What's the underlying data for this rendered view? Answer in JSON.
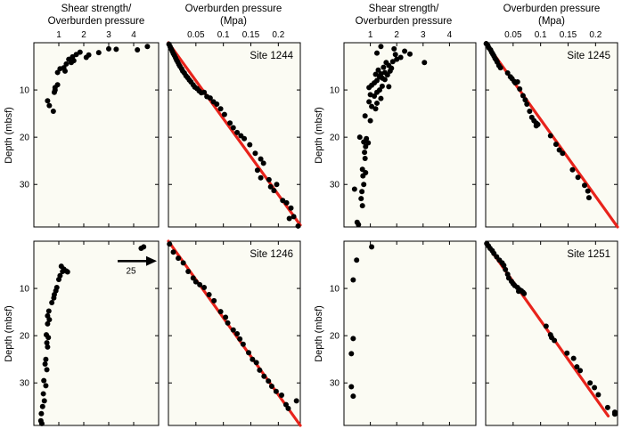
{
  "headers": {
    "shear_line1": "Shear strength/",
    "shear_line2": "Overburden pressure",
    "ob_line1": "Overburden pressure",
    "ob_line2": "(Mpa)"
  },
  "y_axis_label": "Depth (mbsf)",
  "arrow_label": "25",
  "colors": {
    "panel_bg": "#fbfbf3",
    "points": "#000000",
    "trend": "#e8231b"
  },
  "chart_data": [
    {
      "type": "scatter",
      "site": "",
      "kind": "shear",
      "xlabel": "Shear strength/ Overburden pressure",
      "ylabel": "Depth (mbsf)",
      "xlim": [
        0,
        5
      ],
      "ylim": [
        0,
        39
      ],
      "y_reversed": true,
      "x_ticks": [
        1,
        2,
        3,
        4
      ],
      "y_ticks": [
        10,
        20,
        30
      ],
      "points": [
        [
          4.55,
          0.8
        ],
        [
          4.15,
          1.5
        ],
        [
          3.3,
          1.4
        ],
        [
          3.0,
          1.3
        ],
        [
          2.6,
          2.1
        ],
        [
          2.2,
          2.6
        ],
        [
          2.1,
          3.1
        ],
        [
          1.85,
          2.0
        ],
        [
          1.7,
          2.5
        ],
        [
          1.55,
          3.0
        ],
        [
          1.6,
          3.8
        ],
        [
          1.5,
          4.2
        ],
        [
          1.4,
          3.5
        ],
        [
          1.3,
          4.5
        ],
        [
          1.2,
          5.3
        ],
        [
          1.05,
          5.5
        ],
        [
          1.25,
          6.0
        ],
        [
          0.95,
          6.3
        ],
        [
          0.95,
          8.9
        ],
        [
          0.85,
          9.5
        ],
        [
          0.85,
          10.0
        ],
        [
          0.82,
          10.5
        ],
        [
          0.55,
          12.3
        ],
        [
          0.62,
          13.3
        ],
        [
          0.78,
          14.5
        ]
      ],
      "trend": null
    },
    {
      "type": "scatter",
      "site": "Site 1244",
      "kind": "ob",
      "xlabel": "Overburden pressure (Mpa)",
      "ylabel": "Depth (mbsf)",
      "xlim": [
        0,
        0.24
      ],
      "ylim": [
        0,
        39
      ],
      "y_reversed": true,
      "x_ticks": [
        0.05,
        0.1,
        0.15,
        0.2
      ],
      "x_tick_labels": [
        "0.05",
        "0.1",
        "0.15",
        "0.2"
      ],
      "y_ticks": [
        10,
        20,
        30
      ],
      "points": [
        [
          0.001,
          0.3
        ],
        [
          0.003,
          0.8
        ],
        [
          0.005,
          1.3
        ],
        [
          0.007,
          1.8
        ],
        [
          0.009,
          2.3
        ],
        [
          0.011,
          2.7
        ],
        [
          0.013,
          3.2
        ],
        [
          0.015,
          3.7
        ],
        [
          0.017,
          4.1
        ],
        [
          0.019,
          4.6
        ],
        [
          0.021,
          5.0
        ],
        [
          0.024,
          5.5
        ],
        [
          0.026,
          6.0
        ],
        [
          0.029,
          6.4
        ],
        [
          0.032,
          7.0
        ],
        [
          0.035,
          7.4
        ],
        [
          0.038,
          7.9
        ],
        [
          0.041,
          8.3
        ],
        [
          0.045,
          8.9
        ],
        [
          0.048,
          9.4
        ],
        [
          0.052,
          9.7
        ],
        [
          0.056,
          10.2
        ],
        [
          0.06,
          10.6
        ],
        [
          0.065,
          10.5
        ],
        [
          0.07,
          11.4
        ],
        [
          0.076,
          11.7
        ],
        [
          0.082,
          12.5
        ],
        [
          0.088,
          13.0
        ],
        [
          0.095,
          14.0
        ],
        [
          0.102,
          15.2
        ],
        [
          0.112,
          17.0
        ],
        [
          0.118,
          18.0
        ],
        [
          0.125,
          19.0
        ],
        [
          0.132,
          19.7
        ],
        [
          0.138,
          20.3
        ],
        [
          0.148,
          21.6
        ],
        [
          0.158,
          23.4
        ],
        [
          0.168,
          24.6
        ],
        [
          0.173,
          25.5
        ],
        [
          0.162,
          27.0
        ],
        [
          0.168,
          28.6
        ],
        [
          0.183,
          29.0
        ],
        [
          0.186,
          30.5
        ],
        [
          0.192,
          31.3
        ],
        [
          0.197,
          30.0
        ],
        [
          0.208,
          33.4
        ],
        [
          0.215,
          33.9
        ],
        [
          0.223,
          35.0
        ],
        [
          0.228,
          36.8
        ],
        [
          0.236,
          38.8
        ],
        [
          0.22,
          37.2
        ]
      ],
      "trend": [
        [
          0.0,
          0.0
        ],
        [
          0.24,
          38.6
        ]
      ]
    },
    {
      "type": "scatter",
      "site": "",
      "kind": "shear",
      "xlabel": "Shear strength/ Overburden pressure",
      "ylabel": "Depth (mbsf)",
      "xlim": [
        0,
        5
      ],
      "ylim": [
        0,
        39
      ],
      "y_reversed": true,
      "x_ticks": [
        1,
        2,
        3,
        4
      ],
      "y_ticks": [
        10,
        20,
        30
      ],
      "points": [
        [
          2.15,
          3.1
        ],
        [
          1.95,
          2.5
        ],
        [
          2.0,
          3.5
        ],
        [
          1.85,
          4.0
        ],
        [
          1.6,
          4.2
        ],
        [
          1.7,
          4.8
        ],
        [
          1.5,
          5.2
        ],
        [
          1.8,
          5.4
        ],
        [
          1.3,
          5.8
        ],
        [
          1.75,
          6.0
        ],
        [
          1.55,
          6.3
        ],
        [
          1.4,
          6.6
        ],
        [
          1.2,
          6.7
        ],
        [
          1.65,
          6.8
        ],
        [
          1.35,
          7.2
        ],
        [
          1.45,
          7.5
        ],
        [
          1.55,
          7.8
        ],
        [
          1.25,
          8.0
        ],
        [
          1.15,
          8.5
        ],
        [
          1.05,
          9.0
        ],
        [
          1.45,
          9.2
        ],
        [
          1.7,
          9.3
        ],
        [
          0.95,
          9.5
        ],
        [
          1.35,
          10.0
        ],
        [
          1.25,
          10.5
        ],
        [
          1.0,
          11.0
        ],
        [
          1.15,
          11.3
        ],
        [
          1.4,
          11.8
        ],
        [
          0.95,
          12.5
        ],
        [
          1.25,
          12.8
        ],
        [
          1.05,
          13.5
        ],
        [
          1.2,
          14.0
        ],
        [
          0.8,
          15.5
        ],
        [
          1.0,
          16.5
        ],
        [
          0.6,
          20.0
        ],
        [
          0.85,
          20.3
        ],
        [
          0.75,
          21.0
        ],
        [
          0.92,
          21.2
        ],
        [
          0.82,
          22.0
        ],
        [
          0.78,
          23.2
        ],
        [
          0.8,
          24.5
        ],
        [
          0.7,
          26.8
        ],
        [
          0.82,
          27.5
        ],
        [
          0.72,
          28.2
        ],
        [
          0.75,
          30.0
        ],
        [
          0.68,
          31.5
        ],
        [
          0.65,
          33.0
        ],
        [
          0.7,
          34.5
        ],
        [
          0.4,
          31.0
        ],
        [
          0.5,
          38.0
        ],
        [
          0.55,
          38.5
        ],
        [
          3.05,
          4.2
        ],
        [
          2.5,
          2.4
        ],
        [
          2.3,
          1.8
        ],
        [
          1.9,
          1.3
        ],
        [
          1.4,
          0.8
        ],
        [
          1.25,
          2.2
        ]
      ],
      "trend": null
    },
    {
      "type": "scatter",
      "site": "Site 1245",
      "kind": "ob",
      "xlabel": "Overburden pressure (Mpa)",
      "ylabel": "Depth (mbsf)",
      "xlim": [
        0,
        0.24
      ],
      "ylim": [
        0,
        39
      ],
      "y_reversed": true,
      "x_ticks": [
        0.05,
        0.1,
        0.15,
        0.2
      ],
      "x_tick_labels": [
        "0.05",
        "0.1",
        "0.15",
        "0.2"
      ],
      "y_ticks": [
        10,
        20,
        30
      ],
      "points": [
        [
          0.001,
          0.2
        ],
        [
          0.004,
          0.6
        ],
        [
          0.006,
          1.1
        ],
        [
          0.009,
          1.5
        ],
        [
          0.011,
          2.0
        ],
        [
          0.013,
          2.4
        ],
        [
          0.015,
          2.8
        ],
        [
          0.017,
          3.3
        ],
        [
          0.019,
          3.6
        ],
        [
          0.021,
          4.1
        ],
        [
          0.024,
          4.8
        ],
        [
          0.027,
          5.3
        ],
        [
          0.04,
          6.4
        ],
        [
          0.045,
          7.2
        ],
        [
          0.048,
          7.6
        ],
        [
          0.052,
          8.2
        ],
        [
          0.054,
          8.5
        ],
        [
          0.058,
          8.3
        ],
        [
          0.062,
          9.8
        ],
        [
          0.068,
          11.2
        ],
        [
          0.072,
          12.1
        ],
        [
          0.075,
          13.0
        ],
        [
          0.08,
          14.5
        ],
        [
          0.084,
          15.8
        ],
        [
          0.088,
          16.5
        ],
        [
          0.092,
          17.0
        ],
        [
          0.095,
          17.3
        ],
        [
          0.092,
          17.6
        ],
        [
          0.118,
          19.7
        ],
        [
          0.128,
          21.5
        ],
        [
          0.134,
          22.7
        ],
        [
          0.14,
          23.4
        ],
        [
          0.158,
          26.9
        ],
        [
          0.168,
          28.5
        ],
        [
          0.18,
          30.2
        ],
        [
          0.186,
          31.4
        ],
        [
          0.188,
          32.8
        ]
      ],
      "trend": [
        [
          0.0,
          0.0
        ],
        [
          0.24,
          39.0
        ]
      ]
    },
    {
      "type": "scatter",
      "site": "",
      "kind": "shear",
      "xlabel": "Shear strength/ Overburden pressure",
      "ylabel": "Depth (mbsf)",
      "xlim": [
        0,
        5
      ],
      "ylim": [
        0,
        39
      ],
      "y_reversed": true,
      "x_ticks": [
        1,
        2,
        3,
        4
      ],
      "y_ticks": [
        10,
        20,
        30
      ],
      "points": [
        [
          4.4,
          1.2
        ],
        [
          4.3,
          1.5
        ],
        [
          1.1,
          5.3
        ],
        [
          1.2,
          5.9
        ],
        [
          1.3,
          6.3
        ],
        [
          1.35,
          6.5
        ],
        [
          1.15,
          6.4
        ],
        [
          1.05,
          7.3
        ],
        [
          1.0,
          8.1
        ],
        [
          0.92,
          9.8
        ],
        [
          0.88,
          10.5
        ],
        [
          0.82,
          11.3
        ],
        [
          0.8,
          12.0
        ],
        [
          0.72,
          13.0
        ],
        [
          0.6,
          14.8
        ],
        [
          0.55,
          15.8
        ],
        [
          0.62,
          16.6
        ],
        [
          0.55,
          17.5
        ],
        [
          0.5,
          19.8
        ],
        [
          0.58,
          20.4
        ],
        [
          0.52,
          21.5
        ],
        [
          0.55,
          22.4
        ],
        [
          0.48,
          25.0
        ],
        [
          0.45,
          26.0
        ],
        [
          0.52,
          27.2
        ],
        [
          0.4,
          29.5
        ],
        [
          0.48,
          30.6
        ],
        [
          0.38,
          32.3
        ],
        [
          0.42,
          33.8
        ],
        [
          0.35,
          35.0
        ],
        [
          0.3,
          36.5
        ],
        [
          0.28,
          38.0
        ],
        [
          0.32,
          38.6
        ]
      ],
      "trend": null,
      "annotation": {
        "arrow_depth": 4.2,
        "label": "25"
      }
    },
    {
      "type": "scatter",
      "site": "Site 1246",
      "kind": "ob",
      "xlabel": "Overburden pressure (Mpa)",
      "ylabel": "Depth (mbsf)",
      "xlim": [
        0,
        0.24
      ],
      "ylim": [
        0,
        39
      ],
      "y_reversed": true,
      "x_ticks": [
        0.05,
        0.1,
        0.15,
        0.2
      ],
      "x_tick_labels": [
        "0.05",
        "0.1",
        "0.15",
        "0.2"
      ],
      "y_ticks": [
        10,
        20,
        30
      ],
      "points": [
        [
          0.002,
          0.6
        ],
        [
          0.009,
          2.3
        ],
        [
          0.018,
          3.6
        ],
        [
          0.027,
          4.6
        ],
        [
          0.036,
          6.4
        ],
        [
          0.045,
          7.8
        ],
        [
          0.05,
          8.6
        ],
        [
          0.057,
          9.2
        ],
        [
          0.065,
          9.8
        ],
        [
          0.074,
          11.3
        ],
        [
          0.083,
          12.6
        ],
        [
          0.095,
          14.9
        ],
        [
          0.104,
          16.1
        ],
        [
          0.108,
          17.3
        ],
        [
          0.118,
          18.8
        ],
        [
          0.125,
          19.6
        ],
        [
          0.13,
          20.7
        ],
        [
          0.136,
          21.8
        ],
        [
          0.146,
          23.6
        ],
        [
          0.153,
          25.0
        ],
        [
          0.16,
          25.7
        ],
        [
          0.166,
          27.3
        ],
        [
          0.174,
          28.6
        ],
        [
          0.182,
          29.6
        ],
        [
          0.188,
          30.7
        ],
        [
          0.196,
          31.8
        ],
        [
          0.206,
          32.6
        ],
        [
          0.214,
          34.6
        ],
        [
          0.218,
          35.4
        ],
        [
          0.233,
          33.8
        ]
      ],
      "trend": [
        [
          0.0,
          0.0
        ],
        [
          0.24,
          39.0
        ]
      ]
    },
    {
      "type": "scatter",
      "site": "",
      "kind": "shear",
      "xlabel": "Shear strength/ Overburden pressure",
      "ylabel": "Depth (mbsf)",
      "xlim": [
        0,
        5
      ],
      "ylim": [
        0,
        39
      ],
      "y_reversed": true,
      "x_ticks": [
        1,
        2,
        3,
        4
      ],
      "y_ticks": [
        10,
        20,
        30
      ],
      "points": [
        [
          1.05,
          1.2
        ],
        [
          0.48,
          4.0
        ],
        [
          0.35,
          8.2
        ],
        [
          0.35,
          20.6
        ],
        [
          0.28,
          23.8
        ],
        [
          0.28,
          30.8
        ],
        [
          0.35,
          32.8
        ]
      ],
      "trend": null
    },
    {
      "type": "scatter",
      "site": "Site 1251",
      "kind": "ob",
      "xlabel": "Overburden pressure (Mpa)",
      "ylabel": "Depth (mbsf)",
      "xlim": [
        0,
        0.24
      ],
      "ylim": [
        0,
        39
      ],
      "y_reversed": true,
      "x_ticks": [
        0.05,
        0.1,
        0.15,
        0.2
      ],
      "x_tick_labels": [
        "0.05",
        "0.1",
        "0.15",
        "0.2"
      ],
      "y_ticks": [
        10,
        20,
        30
      ],
      "points": [
        [
          0.002,
          0.5
        ],
        [
          0.005,
          1.0
        ],
        [
          0.008,
          1.5
        ],
        [
          0.012,
          2.0
        ],
        [
          0.015,
          2.6
        ],
        [
          0.02,
          3.3
        ],
        [
          0.025,
          4.0
        ],
        [
          0.03,
          4.6
        ],
        [
          0.033,
          5.1
        ],
        [
          0.036,
          6.0
        ],
        [
          0.04,
          7.0
        ],
        [
          0.042,
          7.8
        ],
        [
          0.047,
          8.5
        ],
        [
          0.05,
          9.0
        ],
        [
          0.053,
          9.4
        ],
        [
          0.058,
          9.8
        ],
        [
          0.062,
          10.3
        ],
        [
          0.065,
          10.5
        ],
        [
          0.068,
          10.8
        ],
        [
          0.07,
          11.1
        ],
        [
          0.06,
          10.6
        ],
        [
          0.11,
          18.0
        ],
        [
          0.118,
          19.8
        ],
        [
          0.12,
          20.4
        ],
        [
          0.125,
          21.0
        ],
        [
          0.148,
          23.7
        ],
        [
          0.16,
          24.8
        ],
        [
          0.166,
          26.6
        ],
        [
          0.172,
          27.4
        ],
        [
          0.19,
          30.0
        ],
        [
          0.198,
          31.0
        ],
        [
          0.205,
          32.5
        ],
        [
          0.222,
          35.2
        ],
        [
          0.235,
          36.2
        ],
        [
          0.235,
          36.6
        ]
      ],
      "trend": [
        [
          0.01,
          2.0
        ],
        [
          0.223,
          37.0
        ]
      ]
    }
  ]
}
